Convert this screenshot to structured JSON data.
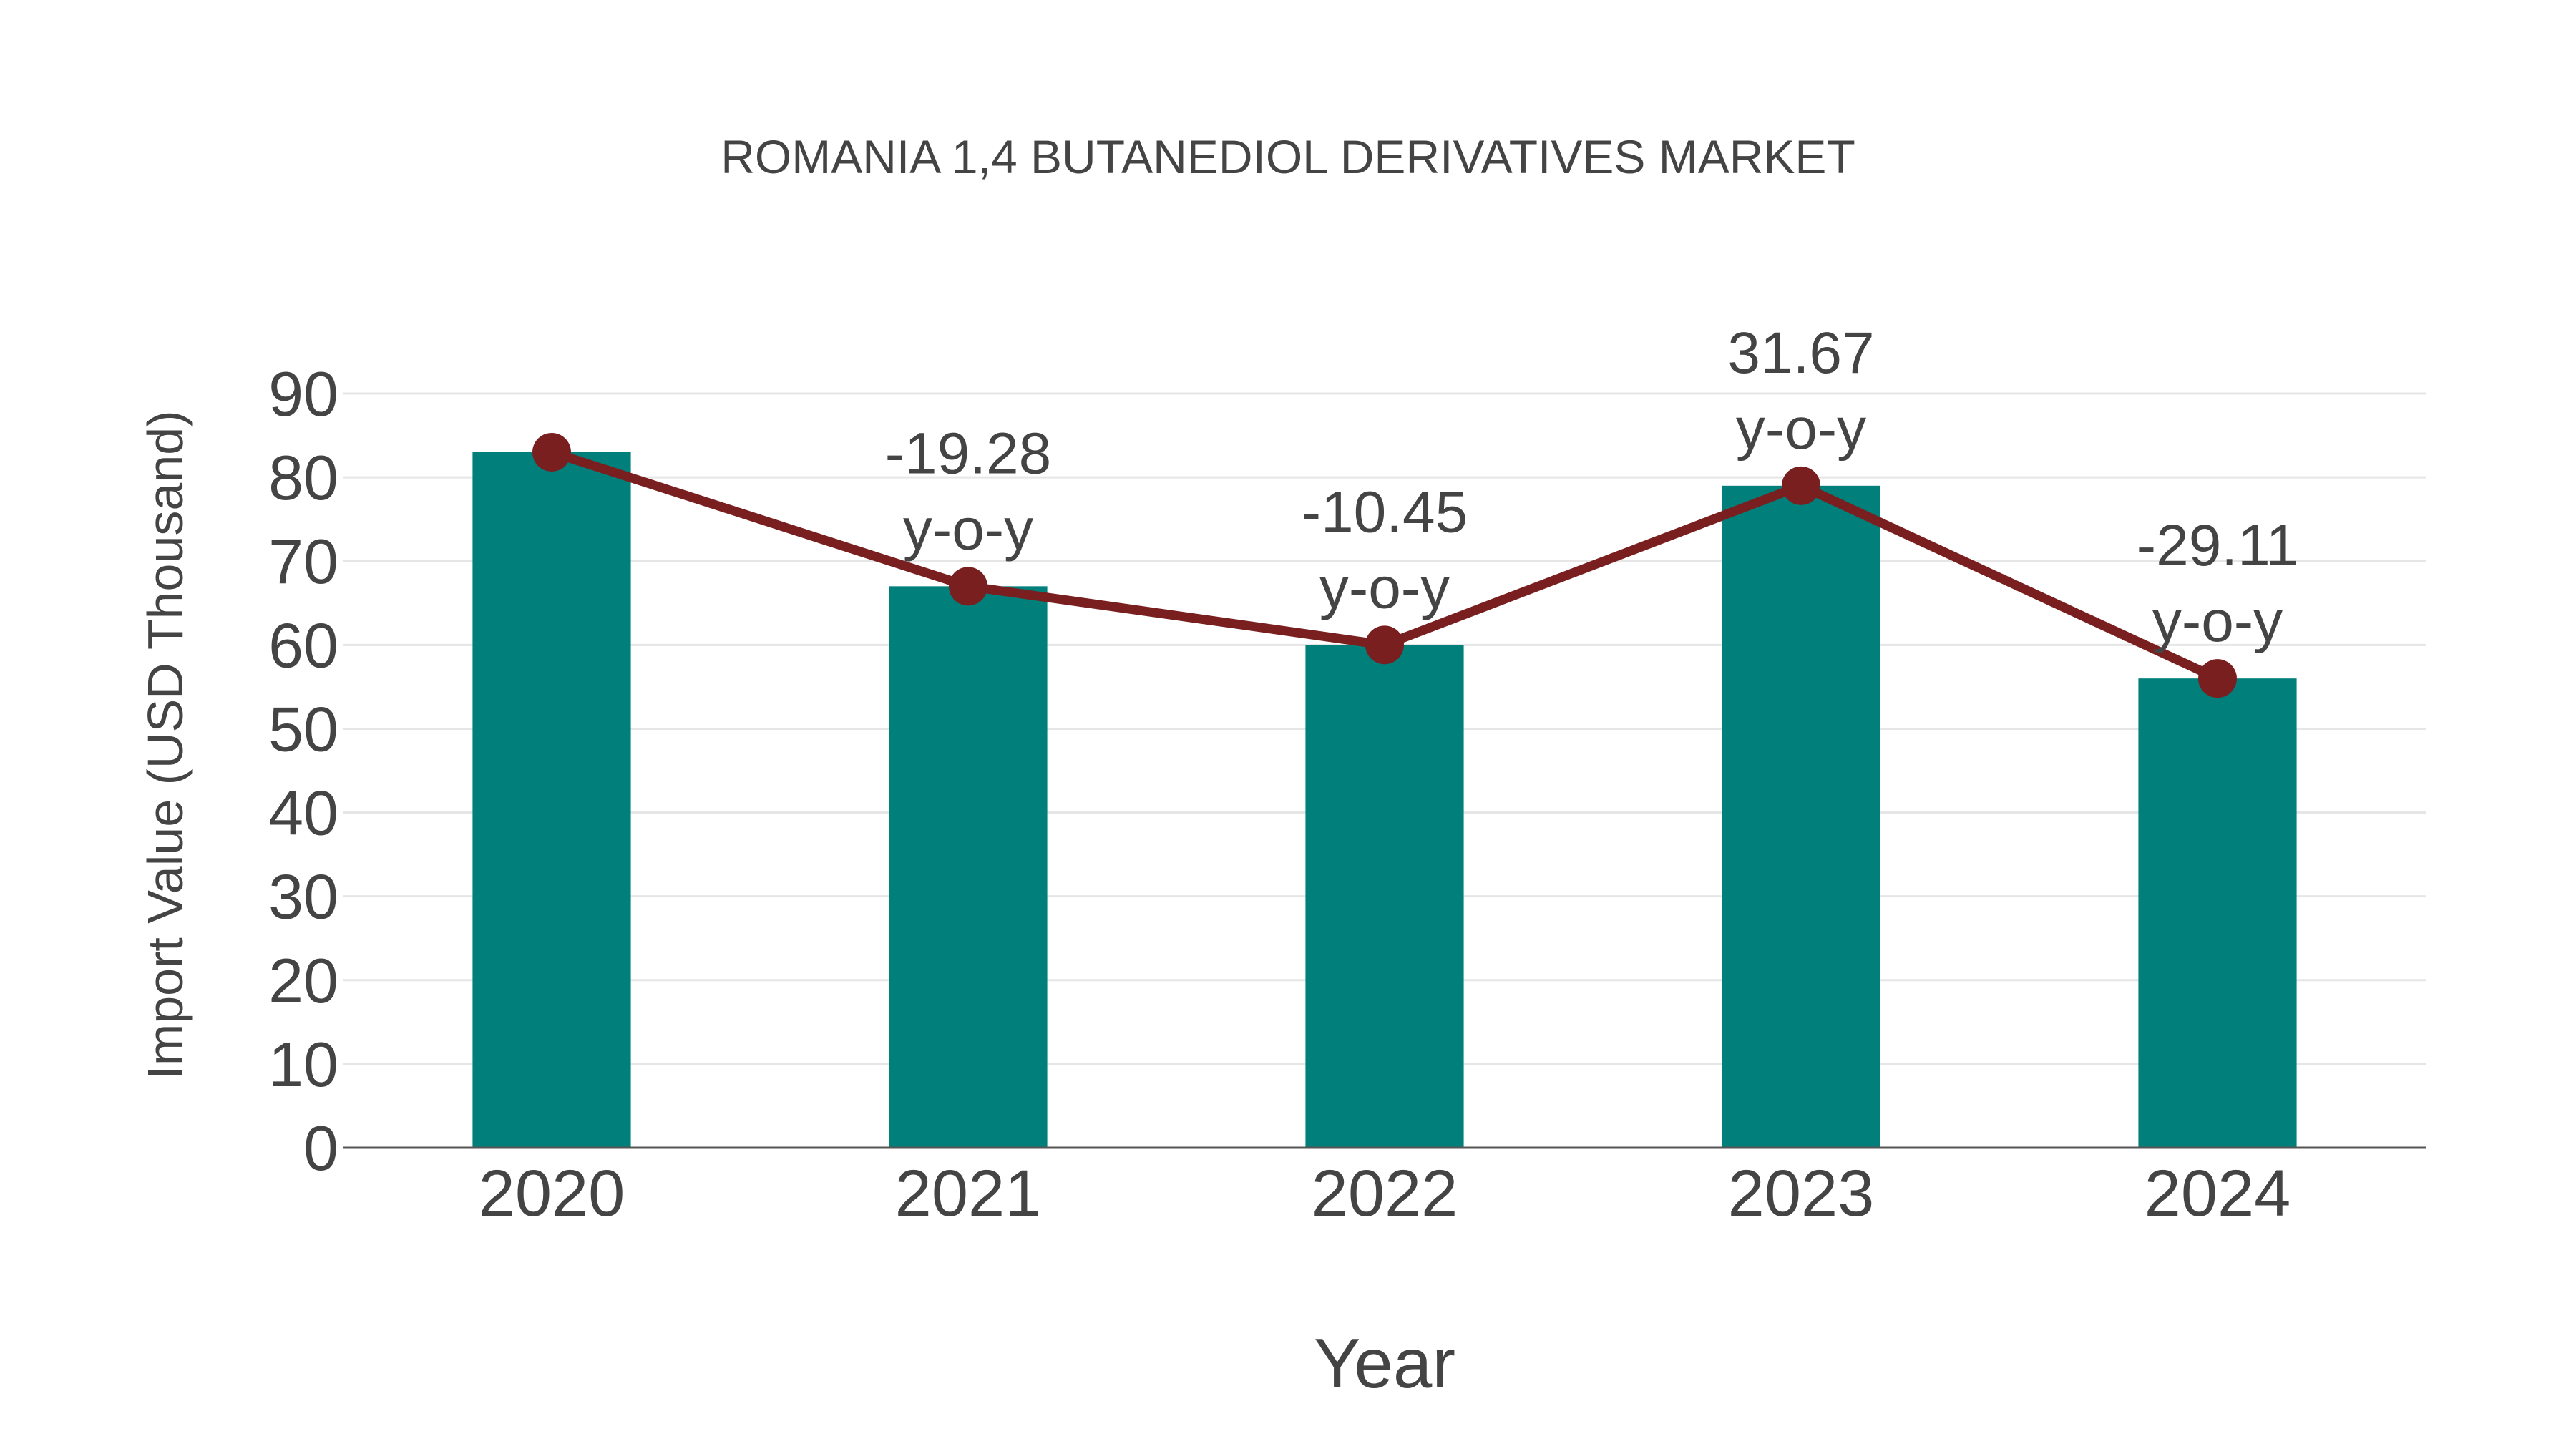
{
  "chart": {
    "title": "ROMANIA 1,4 BUTANEDIOL DERIVATIVES MARKET",
    "x_axis_title": "Year",
    "y_axis_title": "Import Value (USD Thousand)",
    "yoy_suffix": "y-o-y",
    "colors": {
      "bar": "#017F7B",
      "line": "#7A1F1F",
      "marker": "#7A1F1F",
      "gridline": "#E6E6E6",
      "axis": "#555555",
      "text": "#444444"
    }
  },
  "chart_data": {
    "type": "bar",
    "title": "ROMANIA 1,4 BUTANEDIOL DERIVATIVES MARKET",
    "xlabel": "Year",
    "ylabel": "Import Value (USD Thousand)",
    "categories": [
      "2020",
      "2021",
      "2022",
      "2023",
      "2024"
    ],
    "series": [
      {
        "name": "Import Value",
        "type": "bar",
        "values": [
          83,
          67,
          60,
          79,
          56
        ]
      },
      {
        "name": "Import Value (trend line)",
        "type": "line",
        "values": [
          83,
          67,
          60,
          79,
          56
        ]
      }
    ],
    "annotations": [
      {
        "category": "2021",
        "text": "-19.28 y-o-y",
        "value": -19.28
      },
      {
        "category": "2022",
        "text": "-10.45 y-o-y",
        "value": -10.45
      },
      {
        "category": "2023",
        "text": "31.67 y-o-y",
        "value": 31.67
      },
      {
        "category": "2024",
        "text": "-29.11 y-o-y",
        "value": -29.11
      }
    ],
    "yoy_labels": [
      "",
      "-19.28",
      "-10.45",
      "31.67",
      "-29.11"
    ],
    "y_ticks": [
      0,
      10,
      20,
      30,
      40,
      50,
      60,
      70,
      80,
      90
    ],
    "ylim": [
      0,
      90
    ],
    "grid": true,
    "legend": "none"
  }
}
